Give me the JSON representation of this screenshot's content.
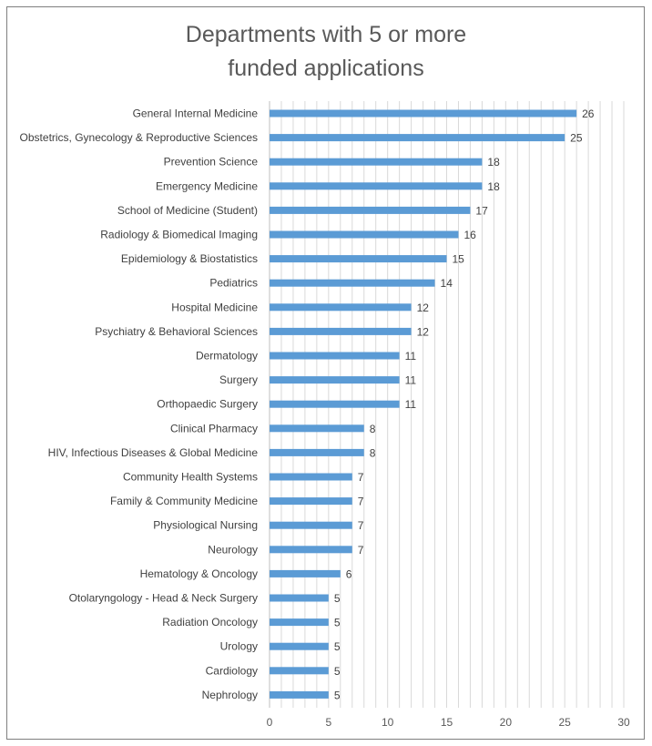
{
  "chart_data": {
    "type": "bar",
    "orientation": "horizontal",
    "title_lines": [
      "Departments with 5 or more",
      "funded applications"
    ],
    "categories": [
      "General Internal Medicine",
      "Obstetrics, Gynecology & Reproductive Sciences",
      "Prevention Science",
      "Emergency Medicine",
      "School of Medicine (Student)",
      "Radiology & Biomedical Imaging",
      "Epidemiology & Biostatistics",
      "Pediatrics",
      "Hospital Medicine",
      "Psychiatry & Behavioral Sciences",
      "Dermatology",
      "Surgery",
      "Orthopaedic Surgery",
      "Clinical Pharmacy",
      "HIV, Infectious Diseases & Global Medicine",
      "Community Health Systems",
      "Family & Community Medicine",
      "Physiological Nursing",
      "Neurology",
      "Hematology & Oncology",
      "Otolaryngology - Head & Neck Surgery",
      "Radiation Oncology",
      "Urology",
      "Cardiology",
      "Nephrology"
    ],
    "values": [
      26,
      25,
      18,
      18,
      17,
      16,
      15,
      14,
      12,
      12,
      11,
      11,
      11,
      8,
      8,
      7,
      7,
      7,
      7,
      6,
      5,
      5,
      5,
      5,
      5
    ],
    "xlim": [
      0,
      30
    ],
    "x_ticks": [
      "0",
      "5",
      "10",
      "15",
      "20",
      "25",
      "30"
    ],
    "grid": true,
    "legend": "none",
    "bar_color": "#5b9bd5",
    "grid_color": "#d9d9d9"
  }
}
